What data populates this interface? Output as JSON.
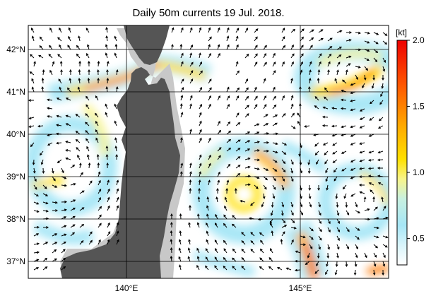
{
  "title": "Daily 50m currents 19 Jul. 2018.",
  "map": {
    "lon_range": [
      136.5,
      147.5
    ],
    "lat_range": [
      36.5,
      42.5
    ],
    "lon_ticks": [
      {
        "value": 140,
        "label": "140°E"
      },
      {
        "value": 145,
        "label": "145°E"
      }
    ],
    "lat_ticks": [
      {
        "value": 42,
        "label": "42°N"
      },
      {
        "value": 41,
        "label": "41°N"
      },
      {
        "value": 40,
        "label": "40°N"
      },
      {
        "value": 39,
        "label": "39°N"
      },
      {
        "value": 38,
        "label": "38°N"
      },
      {
        "value": 37,
        "label": "37°N"
      }
    ],
    "colors": {
      "land": "#555555",
      "shelf": "#c8c8c8",
      "sea": "#ffffff",
      "grid": "#000000"
    }
  },
  "colorbar": {
    "unit_label": "[kt]",
    "min": 0.3,
    "max": 2.0,
    "ticks": [
      {
        "value": 2.0,
        "label": "2.0"
      },
      {
        "value": 1.5,
        "label": "1.5"
      },
      {
        "value": 1.0,
        "label": "1.0"
      },
      {
        "value": 0.5,
        "label": "0.5"
      }
    ],
    "stops": [
      {
        "value": 0.3,
        "color": "#ffffff"
      },
      {
        "value": 0.45,
        "color": "#d8f4fb"
      },
      {
        "value": 0.6,
        "color": "#a6e6f6"
      },
      {
        "value": 0.8,
        "color": "#c8f0e0"
      },
      {
        "value": 0.95,
        "color": "#f8f48a"
      },
      {
        "value": 1.1,
        "color": "#ffe000"
      },
      {
        "value": 1.35,
        "color": "#ffaa00"
      },
      {
        "value": 1.65,
        "color": "#ff5a00"
      },
      {
        "value": 2.0,
        "color": "#ee0000"
      }
    ]
  }
}
